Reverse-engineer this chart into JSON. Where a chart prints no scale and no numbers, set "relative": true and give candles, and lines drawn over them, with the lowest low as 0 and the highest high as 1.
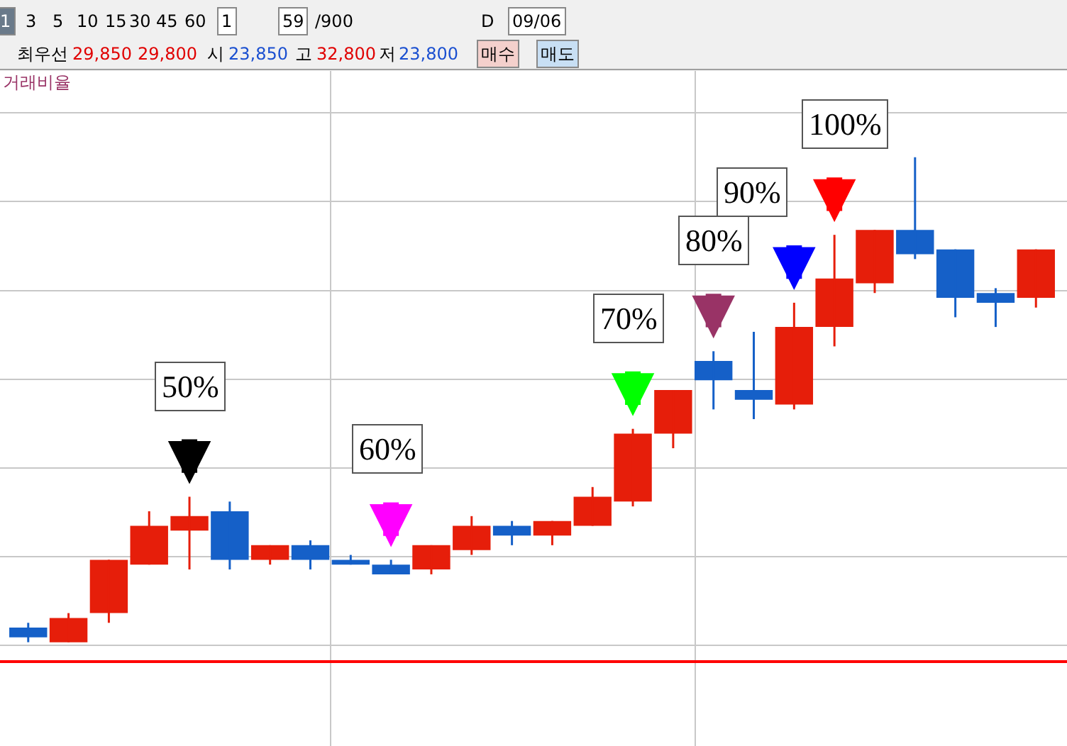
{
  "chart_data": {
    "type": "candlestick",
    "relative": true,
    "grid": true,
    "tick_labels": false,
    "categories": [
      null,
      null,
      null,
      null,
      null,
      null,
      null,
      null,
      null,
      null,
      null,
      null,
      null,
      null,
      null,
      null,
      null,
      null,
      null,
      null,
      null,
      null,
      null,
      null,
      null,
      null
    ],
    "ohlc": [
      [
        0.03,
        0.04,
        0.0,
        0.01
      ],
      [
        0.0,
        0.06,
        0.0,
        0.05
      ],
      [
        0.06,
        0.17,
        0.04,
        0.17
      ],
      [
        0.16,
        0.27,
        0.16,
        0.24
      ],
      [
        0.23,
        0.3,
        0.15,
        0.26
      ],
      [
        0.27,
        0.29,
        0.15,
        0.17
      ],
      [
        0.17,
        0.2,
        0.16,
        0.2
      ],
      [
        0.2,
        0.21,
        0.15,
        0.17
      ],
      [
        0.17,
        0.18,
        0.16,
        0.16
      ],
      [
        0.16,
        0.17,
        0.14,
        0.14
      ],
      [
        0.15,
        0.2,
        0.14,
        0.2
      ],
      [
        0.19,
        0.26,
        0.18,
        0.24
      ],
      [
        0.24,
        0.25,
        0.2,
        0.22
      ],
      [
        0.22,
        0.25,
        0.2,
        0.25
      ],
      [
        0.24,
        0.32,
        0.24,
        0.3
      ],
      [
        0.29,
        0.44,
        0.28,
        0.43
      ],
      [
        0.43,
        0.52,
        0.4,
        0.52
      ],
      [
        0.58,
        0.6,
        0.48,
        0.54
      ],
      [
        0.52,
        0.64,
        0.46,
        0.5
      ],
      [
        0.49,
        0.7,
        0.48,
        0.65
      ],
      [
        0.65,
        0.84,
        0.61,
        0.75
      ],
      [
        0.74,
        0.85,
        0.72,
        0.85
      ],
      [
        0.85,
        1.0,
        0.79,
        0.8
      ],
      [
        0.81,
        0.81,
        0.67,
        0.71
      ],
      [
        0.72,
        0.73,
        0.65,
        0.7
      ],
      [
        0.71,
        0.81,
        0.69,
        0.81
      ]
    ],
    "colors": [
      "#1560c8",
      "#e61e0a",
      "#e61e0a",
      "#e61e0a",
      "#e61e0a",
      "#1560c8",
      "#e61e0a",
      "#1560c8",
      "#1560c8",
      "#1560c8",
      "#e61e0a",
      "#e61e0a",
      "#1560c8",
      "#e61e0a",
      "#e61e0a",
      "#e61e0a",
      "#e61e0a",
      "#1560c8",
      "#1560c8",
      "#e61e0a",
      "#e61e0a",
      "#e61e0a",
      "#1560c8",
      "#1560c8",
      "#1560c8",
      "#e61e0a"
    ],
    "ref_lines": [
      {
        "axis": "y",
        "value": -0.04,
        "color": "#ff0000"
      }
    ],
    "annotations": [
      "50%",
      "60%",
      "70%",
      "80%",
      "90%",
      "100%",
      "1",
      "3",
      "5",
      "10",
      "15",
      "30",
      "45",
      "60",
      "1",
      "59",
      "/900",
      "D",
      "09/06",
      "최우선",
      "29,850",
      "29,800",
      "시",
      "23,850",
      "고",
      "32,800",
      "저",
      "23,800",
      "매수",
      "매도",
      "거래비율"
    ]
  }
}
